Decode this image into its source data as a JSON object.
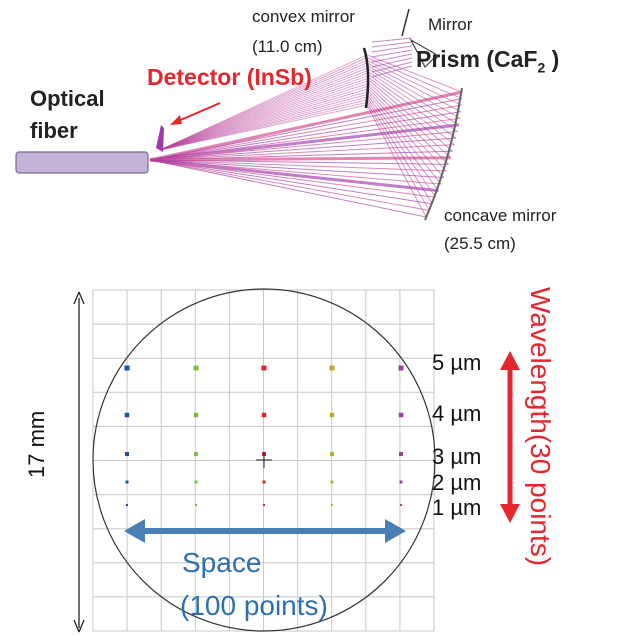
{
  "top": {
    "convex_mirror_name": "convex mirror",
    "convex_mirror_size": "(11.0 cm)",
    "mirror_label": "Mirror",
    "prism_label": "Prism (CaF",
    "prism_sub": "2",
    "prism_close": " )",
    "detector_label": "Detector (InSb)",
    "fiber_line1": "Optical",
    "fiber_line2": "fiber",
    "concave_mirror_name": "concave mirror",
    "concave_mirror_size": "(25.5 cm)"
  },
  "spot": {
    "height_label": "17 mm",
    "space_line1": "Space",
    "space_line2": "(100 points)",
    "wavelength_label": "Wavelength(30 points)",
    "wl_labels": [
      "5 µm",
      "4 µm",
      "3 µm",
      "2 µm",
      "1 µm"
    ],
    "column_colors": [
      "#1f4fa6",
      "#7ac143",
      "#e3242b",
      "#b7b21f",
      "#9b3fa3"
    ],
    "colors": {
      "accent_red": "#e5262c",
      "space_arrow": "#4a7fb5",
      "fiber_fill": "#c3b3d8",
      "ray_purple": "#a13aa8",
      "ray_pink": "#d1478a"
    }
  }
}
